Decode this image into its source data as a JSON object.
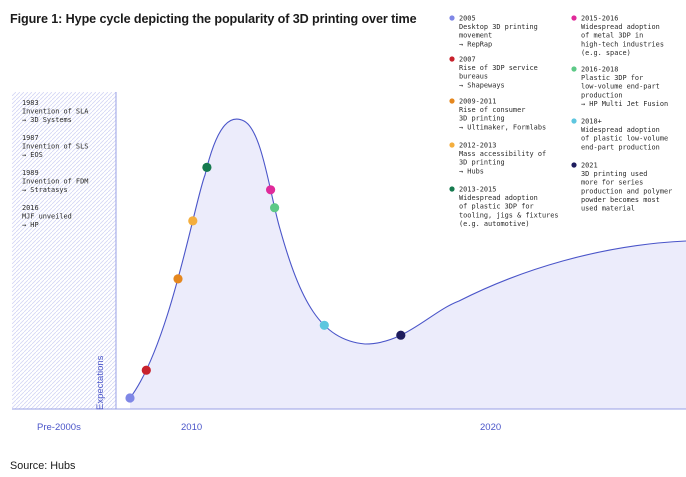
{
  "title": "Figure 1: Hype cycle depicting the popularity of 3D printing over time",
  "source": "Source: Hubs",
  "chart_data": {
    "type": "line",
    "title": "Figure 1: Hype cycle depicting the popularity of 3D printing over time",
    "xlabel": "",
    "ylabel": "Expectations",
    "x_ticks": [
      "Pre-2000s",
      "2010",
      "2020"
    ],
    "grid": false,
    "legend_position": "top-right",
    "pre2000_notes": [
      {
        "year": "1983",
        "event": "Invention of SLA",
        "company": "→ 3D Systems"
      },
      {
        "year": "1987",
        "event": "Invention of SLS",
        "company": "→ EOS"
      },
      {
        "year": "1989",
        "event": "Invention of FDM",
        "company": "→ Stratasys"
      },
      {
        "year": "2016",
        "event": "MJF unveiled",
        "company": "→ HP"
      }
    ],
    "milestones": [
      {
        "period": "2005",
        "lines": [
          "Desktop 3D printing",
          "movement",
          "→ RepRap"
        ],
        "color": "#7f87e6",
        "t": 0.0
      },
      {
        "period": "2007",
        "lines": [
          "Rise of 3DP service",
          "bureaus",
          "→ Shapeways"
        ],
        "color": "#c8222c",
        "t": 0.035
      },
      {
        "period": "2009-2011",
        "lines": [
          "Rise of consumer",
          "3D printing",
          "→ Ultimaker, Formlabs"
        ],
        "color": "#e5871e",
        "t": 0.14
      },
      {
        "period": "2012-2013",
        "lines": [
          "Mass accessibility of",
          "3D printing",
          "→ Hubs"
        ],
        "color": "#f4ae3d",
        "t": 0.205
      },
      {
        "period": "2013-2015",
        "lines": [
          "Widespread adoption",
          "of plastic 3DP for",
          "tooling, jigs & fixtures",
          "(e.g. automotive)"
        ],
        "color": "#167a4f",
        "t": 0.265
      },
      {
        "period": "2015-2016",
        "lines": [
          "Widespread adoption",
          "of metal 3DP in",
          "high-tech industries",
          "(e.g. space)"
        ],
        "color": "#e02a9a",
        "t": 0.42
      },
      {
        "period": "2016-2018",
        "lines": [
          "Plastic 3DP for",
          "low-volume end-part",
          "production",
          "→ HP Multi Jet Fusion"
        ],
        "color": "#5dc987",
        "t": 0.44
      },
      {
        "period": "2018+",
        "lines": [
          "Widespread adoption",
          "of plastic low-volume",
          "end-part production"
        ],
        "color": "#5ec6df",
        "t": 0.58
      },
      {
        "period": "2021",
        "lines": [
          "3D printing used",
          "more for series",
          "production and polymer",
          "powder becomes most",
          "used material"
        ],
        "color": "#1e1c5e",
        "t": 0.67
      }
    ],
    "colors": {
      "curve": "#4a55c9",
      "fill": "#ececfb",
      "axis": "#9aa1e6",
      "hatch": "#c9ccf2"
    }
  }
}
